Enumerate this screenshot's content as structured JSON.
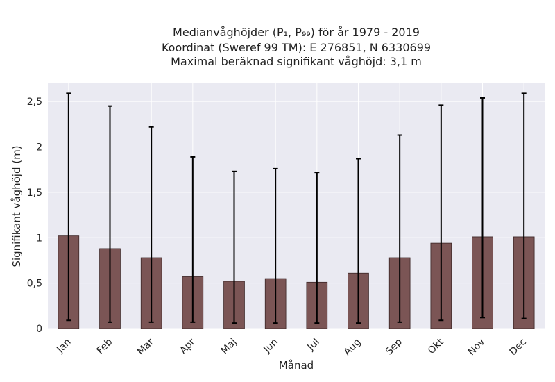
{
  "chart_data": {
    "type": "bar",
    "title_lines": [
      "Medianvåghöjder (P₁, P₉₉) för år 1979 - 2019",
      "Koordinat (Sweref 99 TM): E 276851, N 6330699",
      "Maximal beräknad signifikant våghöjd: 3,1 m"
    ],
    "xlabel": "Månad",
    "ylabel": "Signifikant våghöjd (m)",
    "categories": [
      "Jan",
      "Feb",
      "Mar",
      "Apr",
      "Maj",
      "Jun",
      "Jul",
      "Aug",
      "Sep",
      "Okt",
      "Nov",
      "Dec"
    ],
    "values": [
      1.02,
      0.88,
      0.78,
      0.57,
      0.52,
      0.55,
      0.51,
      0.61,
      0.78,
      0.94,
      1.01,
      1.01
    ],
    "err_low": [
      0.09,
      0.07,
      0.07,
      0.07,
      0.06,
      0.06,
      0.06,
      0.06,
      0.07,
      0.09,
      0.12,
      0.11
    ],
    "err_high": [
      2.59,
      2.45,
      2.22,
      1.89,
      1.73,
      1.76,
      1.72,
      1.87,
      2.13,
      2.46,
      2.54,
      2.59
    ],
    "ylim": [
      0,
      2.7
    ],
    "yticks": [
      0,
      0.5,
      1,
      1.5,
      2,
      2.5
    ],
    "ytick_labels": [
      "0",
      "0,5",
      "1",
      "1,5",
      "2",
      "2,5"
    ],
    "grid": true,
    "colors": {
      "bar": "#7b5555",
      "error_bar": "#000000",
      "plot_background": "#eaeaf2",
      "grid": "#ffffff"
    }
  }
}
